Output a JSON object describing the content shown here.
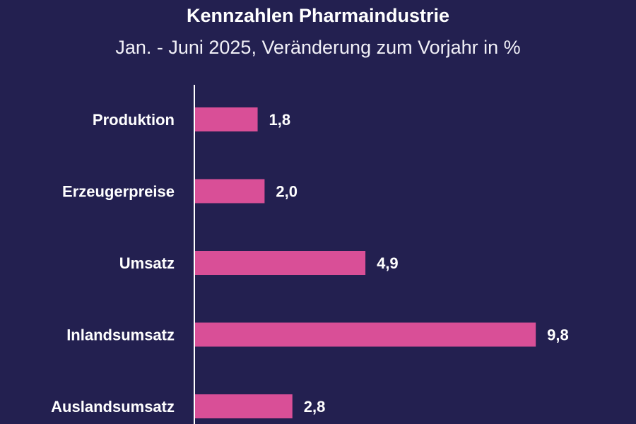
{
  "chart_data": {
    "type": "bar",
    "orientation": "horizontal",
    "title": "Kennzahlen Pharmaindustrie",
    "subtitle": "Jan. - Juni 2025, Veränderung zum Vorjahr in %",
    "categories": [
      "Produktion",
      "Erzeugerpreise",
      "Umsatz",
      "Inlandsumsatz",
      "Auslandsumsatz"
    ],
    "values": [
      1.8,
      2.0,
      4.9,
      9.8,
      2.8
    ],
    "value_labels": [
      "1,8",
      "2,0",
      "4,9",
      "9,8",
      "2,8"
    ],
    "xlabel": "",
    "ylabel": "",
    "grid": false,
    "legend": "none"
  },
  "colors": {
    "background": "#232050",
    "bar": "#d94f97",
    "axis": "#ffffff",
    "text": "#ffffff"
  }
}
